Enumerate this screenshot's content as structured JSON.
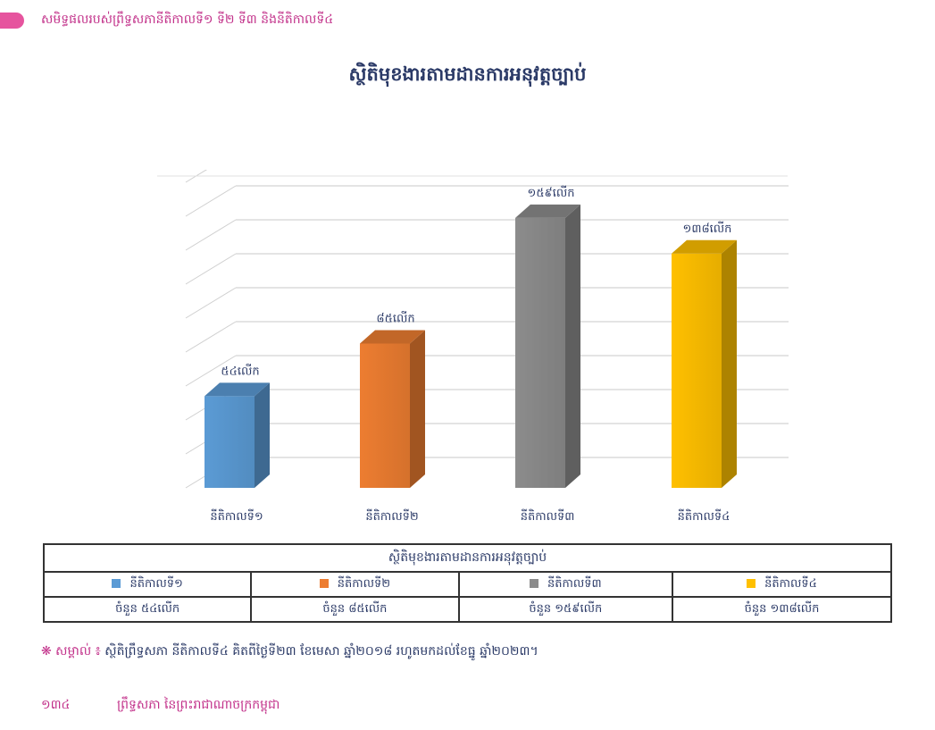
{
  "header": {
    "title": "សមិទ្ធផលរបស់ព្រឹទ្ធសភានីតិកាលទី១ ទី២ ទី៣ និងនីតិកាលទី៤"
  },
  "colors": {
    "accent": "#e6549e",
    "text": "#2b3a67",
    "grid": "#cfcfcf"
  },
  "chart_data": {
    "type": "bar",
    "title": "ស្ថិតិមុខងារតាមដានការអនុវត្តច្បាប់",
    "categories": [
      "នីតិកាលទី១",
      "នីតិកាលទី២",
      "នីតិកាលទី៣",
      "នីតិកាលទី៤"
    ],
    "values": [
      54,
      85,
      159,
      138
    ],
    "data_labels": [
      "៥៤លើក",
      "៨៥លើក",
      "១៥៩លើក",
      "១៣៨លើក"
    ],
    "colors": [
      "#5b9bd5",
      "#ed7d31",
      "#8c8c8c",
      "#ffc000"
    ],
    "ylim": [
      0,
      180
    ],
    "grid": true,
    "legend": "table-below"
  },
  "table": {
    "title": "ស្ថិតិមុខងារតាមដានការអនុវត្តច្បាប់",
    "legend": [
      "នីតិកាលទី១",
      "នីតិកាលទី២",
      "នីតិកាលទី៣",
      "នីតិកាលទី៤"
    ],
    "counts": [
      "ចំនួន ៥៤លើក",
      "ចំនួន ៨៥លើក",
      "ចំនួន ១៥៩លើក",
      "ចំនួន ១៣៨លើក"
    ]
  },
  "note": {
    "mark": "❋ សម្គាល់ ៖",
    "text": "ស្ថិតិព្រឹទ្ធសភា នីតិកាលទី៤ គិតពីថ្ងៃទី២៣ ខែមេសា ឆ្នាំ២០១៨ រហូតមកដល់ខែធ្នូ ឆ្នាំ២០២៣។"
  },
  "footer": {
    "page": "១៣៤",
    "text": "ព្រឹទ្ធសភា នៃព្រះរាជាណាចក្រកម្ពុជា"
  }
}
